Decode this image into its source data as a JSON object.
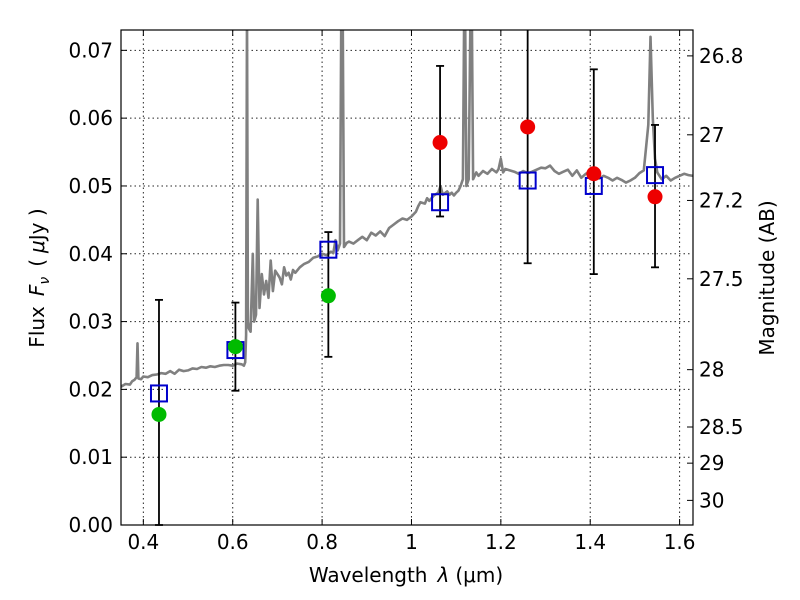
{
  "chart_data": {
    "type": "scatter",
    "xlabel_text": "Wavelength",
    "xlabel_symbol": "λ",
    "xlabel_unit": "(μm)",
    "ylabel_prefix": "Flux",
    "ylabel_symbol": "F",
    "ylabel_subscript": "ν",
    "ylabel_unit_open": "(",
    "ylabel_unit_symbol": "μ",
    "ylabel_unit_rest": "Jy )",
    "y2label": "Magnitude (AB)",
    "xlim": [
      0.35,
      1.63
    ],
    "ylim": [
      0.0,
      0.073
    ],
    "grid": true,
    "x_ticks": [
      {
        "v": 0.4,
        "label": "0.4"
      },
      {
        "v": 0.6,
        "label": "0.6"
      },
      {
        "v": 0.8,
        "label": "0.8"
      },
      {
        "v": 1.0,
        "label": "1"
      },
      {
        "v": 1.2,
        "label": "1.2"
      },
      {
        "v": 1.4,
        "label": "1.4"
      },
      {
        "v": 1.6,
        "label": "1.6"
      }
    ],
    "y_ticks": [
      {
        "v": 0.0,
        "label": "0.00"
      },
      {
        "v": 0.01,
        "label": "0.01"
      },
      {
        "v": 0.02,
        "label": "0.02"
      },
      {
        "v": 0.03,
        "label": "0.03"
      },
      {
        "v": 0.04,
        "label": "0.04"
      },
      {
        "v": 0.05,
        "label": "0.05"
      },
      {
        "v": 0.06,
        "label": "0.06"
      },
      {
        "v": 0.07,
        "label": "0.07"
      }
    ],
    "mag_ticks": [
      {
        "mag": 26.8,
        "label": "26.8"
      },
      {
        "mag": 27.0,
        "label": "27"
      },
      {
        "mag": 27.2,
        "label": "27.2"
      },
      {
        "mag": 27.5,
        "label": "27.5"
      },
      {
        "mag": 28.0,
        "label": "28"
      },
      {
        "mag": 28.5,
        "label": "28.5"
      },
      {
        "mag": 29.0,
        "label": "29"
      },
      {
        "mag": 30.0,
        "label": "30"
      }
    ],
    "colors": {
      "spectrum": "#808080",
      "green": "#00bb00",
      "red": "#ee0000",
      "model": "#0000cc",
      "errorbar": "#000000"
    },
    "spectrum": [
      [
        0.35,
        0.0204
      ],
      [
        0.36,
        0.0208
      ],
      [
        0.37,
        0.0207
      ],
      [
        0.375,
        0.0212
      ],
      [
        0.38,
        0.0214
      ],
      [
        0.385,
        0.0218
      ],
      [
        0.387,
        0.0268
      ],
      [
        0.389,
        0.0216
      ],
      [
        0.395,
        0.0215
      ],
      [
        0.4,
        0.0219
      ],
      [
        0.41,
        0.0218
      ],
      [
        0.42,
        0.0221
      ],
      [
        0.43,
        0.0222
      ],
      [
        0.44,
        0.0224
      ],
      [
        0.45,
        0.0223
      ],
      [
        0.46,
        0.0227
      ],
      [
        0.47,
        0.0223
      ],
      [
        0.48,
        0.0229
      ],
      [
        0.49,
        0.0227
      ],
      [
        0.5,
        0.0228
      ],
      [
        0.51,
        0.0231
      ],
      [
        0.52,
        0.023
      ],
      [
        0.53,
        0.0233
      ],
      [
        0.54,
        0.0232
      ],
      [
        0.55,
        0.0234
      ],
      [
        0.56,
        0.0233
      ],
      [
        0.57,
        0.0235
      ],
      [
        0.58,
        0.0236
      ],
      [
        0.59,
        0.0236
      ],
      [
        0.6,
        0.0235
      ],
      [
        0.61,
        0.0238
      ],
      [
        0.62,
        0.0237
      ],
      [
        0.625,
        0.0235
      ],
      [
        0.628,
        0.024
      ],
      [
        0.63,
        0.028
      ],
      [
        0.632,
        0.076
      ],
      [
        0.634,
        0.03
      ],
      [
        0.636,
        0.029
      ],
      [
        0.64,
        0.0285
      ],
      [
        0.645,
        0.04
      ],
      [
        0.648,
        0.03
      ],
      [
        0.652,
        0.031
      ],
      [
        0.656,
        0.048
      ],
      [
        0.66,
        0.032
      ],
      [
        0.665,
        0.037
      ],
      [
        0.67,
        0.034
      ],
      [
        0.675,
        0.036
      ],
      [
        0.68,
        0.0335
      ],
      [
        0.685,
        0.039
      ],
      [
        0.69,
        0.0345
      ],
      [
        0.695,
        0.0375
      ],
      [
        0.7,
        0.037
      ],
      [
        0.705,
        0.0365
      ],
      [
        0.71,
        0.0355
      ],
      [
        0.715,
        0.038
      ],
      [
        0.72,
        0.0368
      ],
      [
        0.725,
        0.0372
      ],
      [
        0.73,
        0.0362
      ],
      [
        0.735,
        0.0376
      ],
      [
        0.74,
        0.0372
      ],
      [
        0.75,
        0.038
      ],
      [
        0.76,
        0.0385
      ],
      [
        0.77,
        0.0388
      ],
      [
        0.78,
        0.0394
      ],
      [
        0.79,
        0.0396
      ],
      [
        0.8,
        0.04
      ],
      [
        0.81,
        0.0398
      ],
      [
        0.82,
        0.0403
      ],
      [
        0.825,
        0.0401
      ],
      [
        0.83,
        0.042
      ],
      [
        0.835,
        0.0405
      ],
      [
        0.84,
        0.0415
      ],
      [
        0.843,
        0.076
      ],
      [
        0.846,
        0.076
      ],
      [
        0.849,
        0.041
      ],
      [
        0.855,
        0.0416
      ],
      [
        0.86,
        0.0418
      ],
      [
        0.87,
        0.0415
      ],
      [
        0.88,
        0.042
      ],
      [
        0.89,
        0.0425
      ],
      [
        0.9,
        0.042
      ],
      [
        0.91,
        0.0431
      ],
      [
        0.92,
        0.0427
      ],
      [
        0.93,
        0.0433
      ],
      [
        0.94,
        0.0426
      ],
      [
        0.95,
        0.0438
      ],
      [
        0.96,
        0.0443
      ],
      [
        0.97,
        0.0448
      ],
      [
        0.98,
        0.0452
      ],
      [
        0.99,
        0.045
      ],
      [
        1.0,
        0.0455
      ],
      [
        1.01,
        0.0462
      ],
      [
        1.015,
        0.047
      ],
      [
        1.02,
        0.0476
      ],
      [
        1.03,
        0.0474
      ],
      [
        1.035,
        0.0482
      ],
      [
        1.04,
        0.0478
      ],
      [
        1.05,
        0.0486
      ],
      [
        1.06,
        0.049
      ],
      [
        1.065,
        0.05
      ],
      [
        1.07,
        0.0487
      ],
      [
        1.08,
        0.0492
      ],
      [
        1.085,
        0.0487
      ],
      [
        1.09,
        0.049
      ],
      [
        1.095,
        0.0486
      ],
      [
        1.1,
        0.049
      ],
      [
        1.105,
        0.0493
      ],
      [
        1.11,
        0.05
      ],
      [
        1.115,
        0.051
      ],
      [
        1.118,
        0.076
      ],
      [
        1.12,
        0.076
      ],
      [
        1.123,
        0.05
      ],
      [
        1.128,
        0.051
      ],
      [
        1.132,
        0.076
      ],
      [
        1.135,
        0.076
      ],
      [
        1.138,
        0.051
      ],
      [
        1.145,
        0.052
      ],
      [
        1.15,
        0.0515
      ],
      [
        1.16,
        0.0522
      ],
      [
        1.17,
        0.0518
      ],
      [
        1.18,
        0.0525
      ],
      [
        1.19,
        0.052
      ],
      [
        1.195,
        0.0525
      ],
      [
        1.2,
        0.054
      ],
      [
        1.205,
        0.052
      ],
      [
        1.21,
        0.0525
      ],
      [
        1.22,
        0.0523
      ],
      [
        1.23,
        0.0521
      ],
      [
        1.24,
        0.0518
      ],
      [
        1.25,
        0.0522
      ],
      [
        1.26,
        0.0519
      ],
      [
        1.27,
        0.0521
      ],
      [
        1.28,
        0.0524
      ],
      [
        1.29,
        0.0527
      ],
      [
        1.3,
        0.0526
      ],
      [
        1.31,
        0.053
      ],
      [
        1.32,
        0.0522
      ],
      [
        1.33,
        0.0518
      ],
      [
        1.34,
        0.0521
      ],
      [
        1.35,
        0.0524
      ],
      [
        1.36,
        0.0515
      ],
      [
        1.37,
        0.0523
      ],
      [
        1.38,
        0.0512
      ],
      [
        1.39,
        0.0518
      ],
      [
        1.4,
        0.052
      ],
      [
        1.41,
        0.0515
      ],
      [
        1.42,
        0.0511
      ],
      [
        1.43,
        0.0515
      ],
      [
        1.44,
        0.0512
      ],
      [
        1.45,
        0.0508
      ],
      [
        1.46,
        0.0512
      ],
      [
        1.47,
        0.0509
      ],
      [
        1.48,
        0.0505
      ],
      [
        1.49,
        0.0508
      ],
      [
        1.5,
        0.0512
      ],
      [
        1.51,
        0.0519
      ],
      [
        1.52,
        0.0523
      ],
      [
        1.53,
        0.059
      ],
      [
        1.535,
        0.072
      ],
      [
        1.54,
        0.06
      ],
      [
        1.545,
        0.054
      ],
      [
        1.55,
        0.052
      ],
      [
        1.56,
        0.051
      ],
      [
        1.57,
        0.0515
      ],
      [
        1.58,
        0.0508
      ],
      [
        1.59,
        0.0512
      ],
      [
        1.6,
        0.0515
      ],
      [
        1.61,
        0.0518
      ],
      [
        1.62,
        0.0516
      ],
      [
        1.63,
        0.0515
      ]
    ],
    "points": [
      {
        "x": 0.435,
        "y": 0.0163,
        "color": "green",
        "err_lo": 0.0,
        "err_hi": 0.0332,
        "model": 0.0194
      },
      {
        "x": 0.606,
        "y": 0.0263,
        "color": "green",
        "err_lo": 0.0198,
        "err_hi": 0.0328,
        "model": 0.0258
      },
      {
        "x": 0.814,
        "y": 0.0338,
        "color": "green",
        "err_lo": 0.0248,
        "err_hi": 0.0432,
        "model": 0.0406
      },
      {
        "x": 1.064,
        "y": 0.0564,
        "color": "red",
        "err_lo": 0.0455,
        "err_hi": 0.0677,
        "model": 0.0476
      },
      {
        "x": 1.26,
        "y": 0.0587,
        "color": "red",
        "err_lo": 0.0386,
        "err_hi": 0.074,
        "model": 0.0508
      },
      {
        "x": 1.408,
        "y": 0.0518,
        "color": "red",
        "err_lo": 0.037,
        "err_hi": 0.0672,
        "model": 0.05
      },
      {
        "x": 1.545,
        "y": 0.0484,
        "color": "red",
        "err_lo": 0.038,
        "err_hi": 0.059,
        "model": 0.0516
      }
    ]
  }
}
